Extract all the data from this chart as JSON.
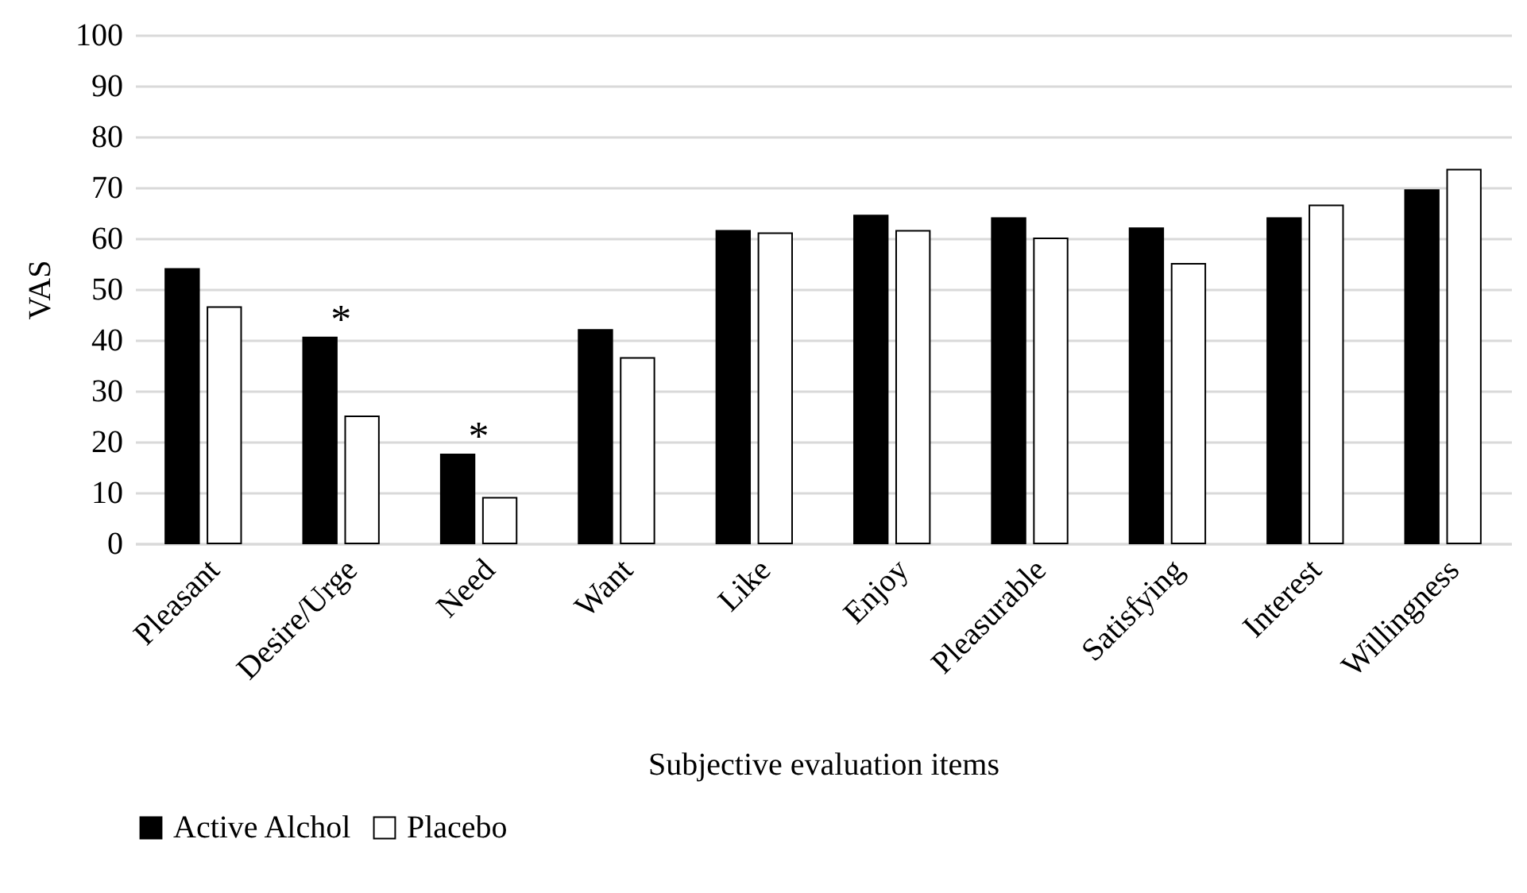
{
  "chart_data": {
    "type": "bar",
    "xlabel": "Subjective evaluation items",
    "ylabel": "VAS",
    "categories": [
      "Pleasant",
      "Desire/Urge",
      "Need",
      "Want",
      "Like",
      "Enjoy",
      "Pleasurable",
      "Satisfying",
      "Interest",
      "Willingness"
    ],
    "series": [
      {
        "name": "Active Alchol",
        "color": "#000000",
        "values": [
          54,
          40.5,
          17.5,
          42,
          61.5,
          64.5,
          64,
          62,
          64,
          69.5
        ]
      },
      {
        "name": "Placebo",
        "color": "#ffffff",
        "values": [
          46.5,
          25,
          9,
          36.5,
          61,
          61.5,
          60,
          55,
          66.5,
          73.5
        ]
      }
    ],
    "ylim": [
      0,
      100
    ],
    "yticks": [
      0,
      10,
      20,
      30,
      40,
      50,
      60,
      70,
      80,
      90,
      100
    ],
    "grid": "y",
    "legend": "bottom",
    "annotations": [
      {
        "text": "*",
        "x": "Desire/Urge",
        "y": 40.5
      },
      {
        "text": "*",
        "x": "Need",
        "y": 17.5
      }
    ]
  }
}
